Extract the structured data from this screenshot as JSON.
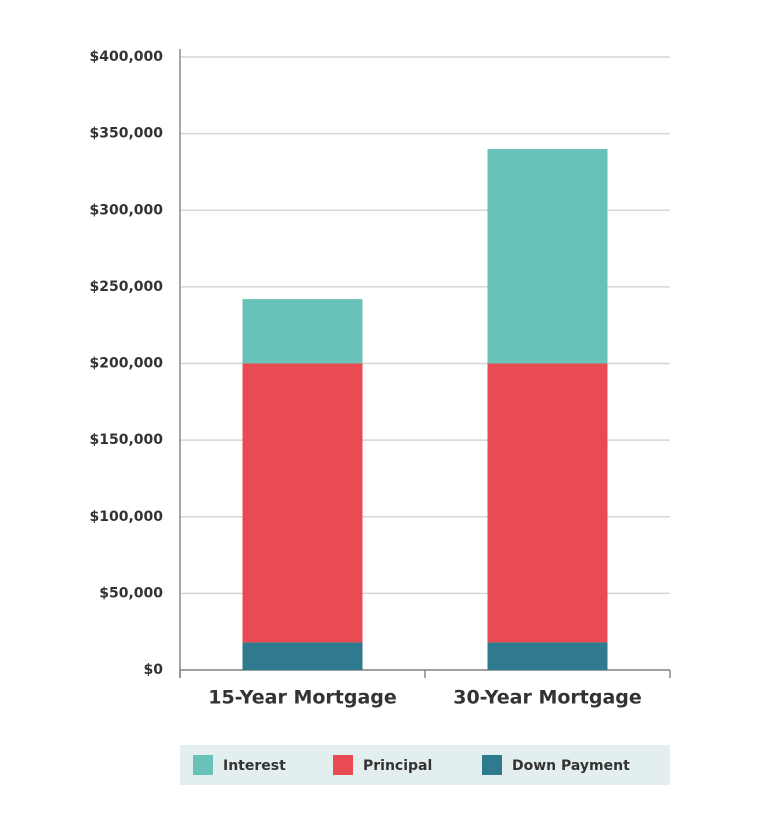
{
  "chart_data": {
    "type": "stacked-bar",
    "categories": [
      "15-Year Mortgage",
      "30-Year Mortgage"
    ],
    "series": [
      {
        "name": "Interest",
        "color": "#69c2b9",
        "values": [
          42000,
          140000
        ]
      },
      {
        "name": "Principal",
        "color": "#e84c52",
        "values": [
          182000,
          182000
        ]
      },
      {
        "name": "Down Payment",
        "color": "#2f7a8f",
        "values": [
          18000,
          18000
        ]
      }
    ],
    "ylim": [
      0,
      400000
    ],
    "yticks": [
      {
        "value": 0,
        "label": "$0"
      },
      {
        "value": 50000,
        "label": "$50,000"
      },
      {
        "value": 100000,
        "label": "$100,000"
      },
      {
        "value": 150000,
        "label": "$150,000"
      },
      {
        "value": 200000,
        "label": "$200,000"
      },
      {
        "value": 250000,
        "label": "$250,000"
      },
      {
        "value": 300000,
        "label": "$300,000"
      },
      {
        "value": 350000,
        "label": "$350,000"
      },
      {
        "value": 400000,
        "label": "$400,000"
      }
    ],
    "grid": true
  }
}
